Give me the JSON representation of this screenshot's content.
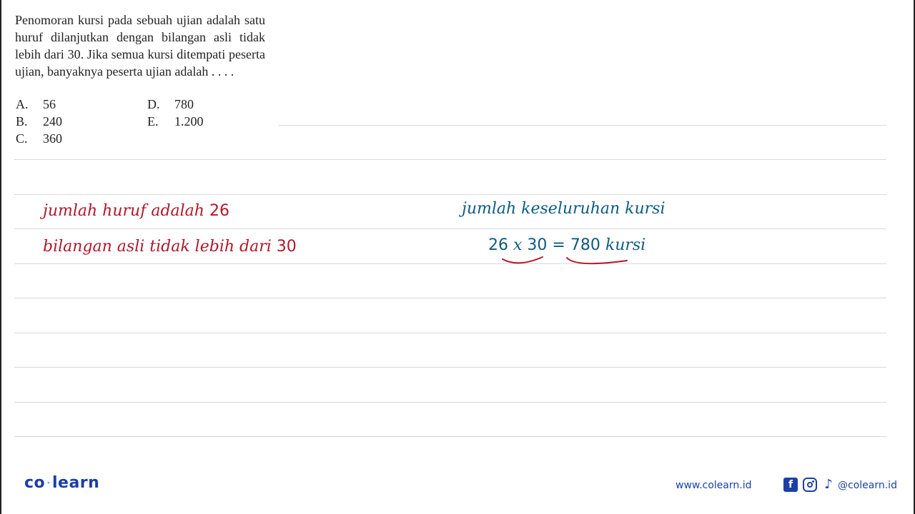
{
  "question": {
    "text": "Penomoran kursi pada sebuah ujian adalah satu huruf dilanjutkan dengan bilangan asli tidak lebih dari 30. Jika semua kursi ditempati peserta ujian, banyaknya peserta ujian adalah . . . .",
    "options": [
      {
        "letter": "A.",
        "value": "56"
      },
      {
        "letter": "B.",
        "value": "240"
      },
      {
        "letter": "C.",
        "value": "360"
      },
      {
        "letter": "D.",
        "value": "780"
      },
      {
        "letter": "E.",
        "value": "1.200"
      }
    ]
  },
  "solution": {
    "left_line1_text": "jumlah huruf adalah",
    "left_line1_num": "26",
    "left_line2_text": "bilangan asli tidak lebih dari",
    "left_line2_num": "30",
    "right_line1": "jumlah keseluruhan kursi",
    "right_eq_a": "26",
    "right_eq_op": "x",
    "right_eq_b": "30",
    "right_eq_eq": "=",
    "right_eq_result": "780",
    "right_eq_unit": "kursi"
  },
  "footer": {
    "logo_left": "co",
    "logo_dot": "·",
    "logo_right": "learn",
    "website": "www.colearn.id",
    "facebook_glyph": "f",
    "tiktok_glyph": "♪",
    "handle": "@colearn.id"
  },
  "colors": {
    "red_ink": "#b0182a",
    "blue_ink": "#0d5b82",
    "brand": "#1c3fa8"
  },
  "icons": [
    "facebook-icon",
    "instagram-icon",
    "tiktok-icon"
  ]
}
